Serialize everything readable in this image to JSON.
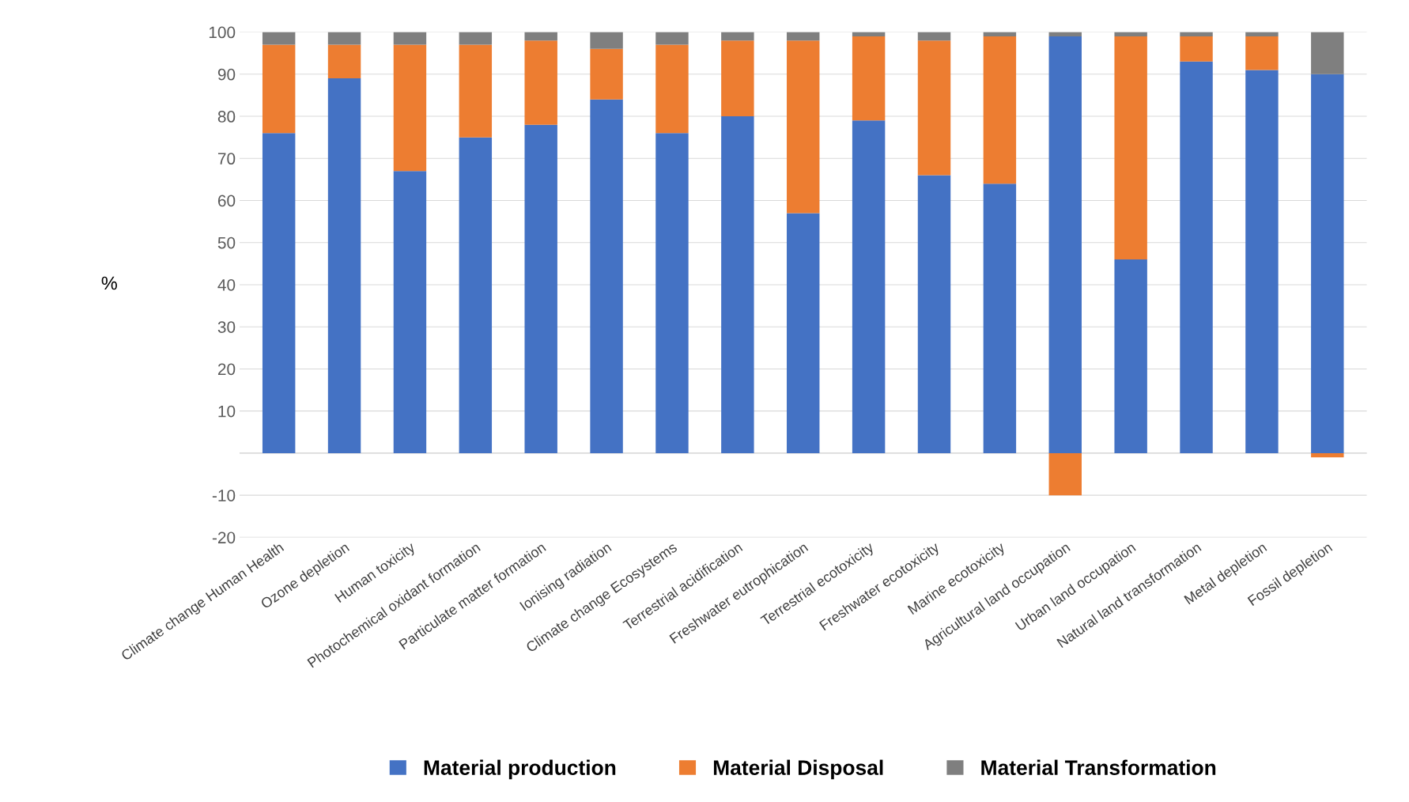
{
  "chart_data": {
    "type": "bar",
    "stacked": true,
    "ylabel": "%",
    "categories": [
      "Climate change Human Health",
      "Ozone depletion",
      "Human toxicity",
      "Photochemical oxidant formation",
      "Particulate matter formation",
      "Ionising radiation",
      "Climate change Ecosystems",
      "Terrestrial acidification",
      "Freshwater eutrophication",
      "Terrestrial ecotoxicity",
      "Freshwater ecotoxicity",
      "Marine ecotoxicity",
      "Agricultural land occupation",
      "Urban land occupation",
      "Natural land transformation",
      "Metal depletion",
      "Fossil depletion"
    ],
    "series": [
      {
        "name": "Material production",
        "color": "#4472c4",
        "values": [
          76,
          89,
          67,
          75,
          78,
          84,
          76,
          80,
          57,
          79,
          66,
          64,
          99,
          46,
          93,
          91,
          90
        ]
      },
      {
        "name": "Material Disposal",
        "color": "#ed7d31",
        "values": [
          21,
          8,
          30,
          22,
          20,
          12,
          21,
          18,
          41,
          20,
          32,
          35,
          -10,
          53,
          6,
          8,
          -1
        ]
      },
      {
        "name": "Material Transformation",
        "color": "#7f7f7f",
        "values": [
          3,
          3,
          3,
          3,
          2,
          4,
          3,
          2,
          2,
          1,
          2,
          1,
          1,
          1,
          1,
          1,
          10
        ]
      }
    ],
    "ylim": [
      -20,
      100
    ],
    "yticks": [
      -20,
      -10,
      {
        "value": 0,
        "label": null
      },
      10,
      20,
      30,
      40,
      50,
      60,
      70,
      80,
      90,
      100
    ],
    "grid": "y",
    "legend": "bottom"
  }
}
